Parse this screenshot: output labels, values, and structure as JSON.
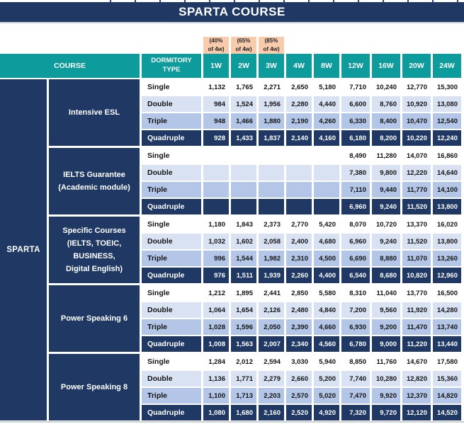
{
  "title": "SPARTA COURSE",
  "sparta_label": "SPARTA",
  "discounts": [
    "(40%\nof 4w)",
    "(65%\nof 4w)",
    "(85%\nof 4w)"
  ],
  "header": {
    "course": "COURSE",
    "dormitory": "DORMITORY\nTYPE",
    "weeks": [
      "1W",
      "2W",
      "3W",
      "4W",
      "8W",
      "12W",
      "16W",
      "20W",
      "24W"
    ]
  },
  "colors": {
    "navy": "#1f3864",
    "teal": "#0d9b9b",
    "peach": "#f8cbad",
    "row_double": "#d9e2f3",
    "row_triple": "#b4c6e7"
  },
  "groups": [
    {
      "course": "Intensive ESL",
      "rows": [
        {
          "type": "Single",
          "values": [
            "1,132",
            "1,765",
            "2,271",
            "2,650",
            "5,180",
            "7,710",
            "10,240",
            "12,770",
            "15,300"
          ]
        },
        {
          "type": "Double",
          "values": [
            "984",
            "1,524",
            "1,956",
            "2,280",
            "4,440",
            "6,600",
            "8,760",
            "10,920",
            "13,080"
          ]
        },
        {
          "type": "Triple",
          "values": [
            "948",
            "1,466",
            "1,880",
            "2,190",
            "4,260",
            "6,330",
            "8,400",
            "10,470",
            "12,540"
          ]
        },
        {
          "type": "Quadruple",
          "values": [
            "928",
            "1,433",
            "1,837",
            "2,140",
            "4,160",
            "6,180",
            "8,200",
            "10,220",
            "12,240"
          ]
        }
      ]
    },
    {
      "course": "IELTS Guarantee\n(Academic module)",
      "rows": [
        {
          "type": "Single",
          "values": [
            "",
            "",
            "",
            "",
            "",
            "8,490",
            "11,280",
            "14,070",
            "16,860"
          ]
        },
        {
          "type": "Double",
          "values": [
            "",
            "",
            "",
            "",
            "",
            "7,380",
            "9,800",
            "12,220",
            "14,640"
          ]
        },
        {
          "type": "Triple",
          "values": [
            "",
            "",
            "",
            "",
            "",
            "7,110",
            "9,440",
            "11,770",
            "14,100"
          ]
        },
        {
          "type": "Quadruple",
          "values": [
            "",
            "",
            "",
            "",
            "",
            "6,960",
            "9,240",
            "11,520",
            "13,800"
          ]
        }
      ]
    },
    {
      "course": "Specific Courses\n(IELTS, TOEIC,\nBUSINESS,\nDigital English)",
      "rows": [
        {
          "type": "Single",
          "values": [
            "1,180",
            "1,843",
            "2,373",
            "2,770",
            "5,420",
            "8,070",
            "10,720",
            "13,370",
            "16,020"
          ]
        },
        {
          "type": "Double",
          "values": [
            "1,032",
            "1,602",
            "2,058",
            "2,400",
            "4,680",
            "6,960",
            "9,240",
            "11,520",
            "13,800"
          ]
        },
        {
          "type": "Triple",
          "values": [
            "996",
            "1,544",
            "1,982",
            "2,310",
            "4,500",
            "6,690",
            "8,880",
            "11,070",
            "13,260"
          ]
        },
        {
          "type": "Quadruple",
          "values": [
            "976",
            "1,511",
            "1,939",
            "2,260",
            "4,400",
            "6,540",
            "8,680",
            "10,820",
            "12,960"
          ]
        }
      ]
    },
    {
      "course": "Power Speaking 6",
      "rows": [
        {
          "type": "Single",
          "values": [
            "1,212",
            "1,895",
            "2,441",
            "2,850",
            "5,580",
            "8,310",
            "11,040",
            "13,770",
            "16,500"
          ]
        },
        {
          "type": "Double",
          "values": [
            "1,064",
            "1,654",
            "2,126",
            "2,480",
            "4,840",
            "7,200",
            "9,560",
            "11,920",
            "14,280"
          ]
        },
        {
          "type": "Triple",
          "values": [
            "1,028",
            "1,596",
            "2,050",
            "2,390",
            "4,660",
            "6,930",
            "9,200",
            "11,470",
            "13,740"
          ]
        },
        {
          "type": "Quadruple",
          "values": [
            "1,008",
            "1,563",
            "2,007",
            "2,340",
            "4,560",
            "6,780",
            "9,000",
            "11,220",
            "13,440"
          ]
        }
      ]
    },
    {
      "course": "Power Speaking 8",
      "rows": [
        {
          "type": "Single",
          "values": [
            "1,284",
            "2,012",
            "2,594",
            "3,030",
            "5,940",
            "8,850",
            "11,760",
            "14,670",
            "17,580"
          ]
        },
        {
          "type": "Double",
          "values": [
            "1,136",
            "1,771",
            "2,279",
            "2,660",
            "5,200",
            "7,740",
            "10,280",
            "12,820",
            "15,360"
          ]
        },
        {
          "type": "Triple",
          "values": [
            "1,100",
            "1,713",
            "2,203",
            "2,570",
            "5,020",
            "7,470",
            "9,920",
            "12,370",
            "14,820"
          ]
        },
        {
          "type": "Quadruple",
          "values": [
            "1,080",
            "1,680",
            "2,160",
            "2,520",
            "4,920",
            "7,320",
            "9,720",
            "12,120",
            "14,520"
          ]
        }
      ]
    }
  ]
}
